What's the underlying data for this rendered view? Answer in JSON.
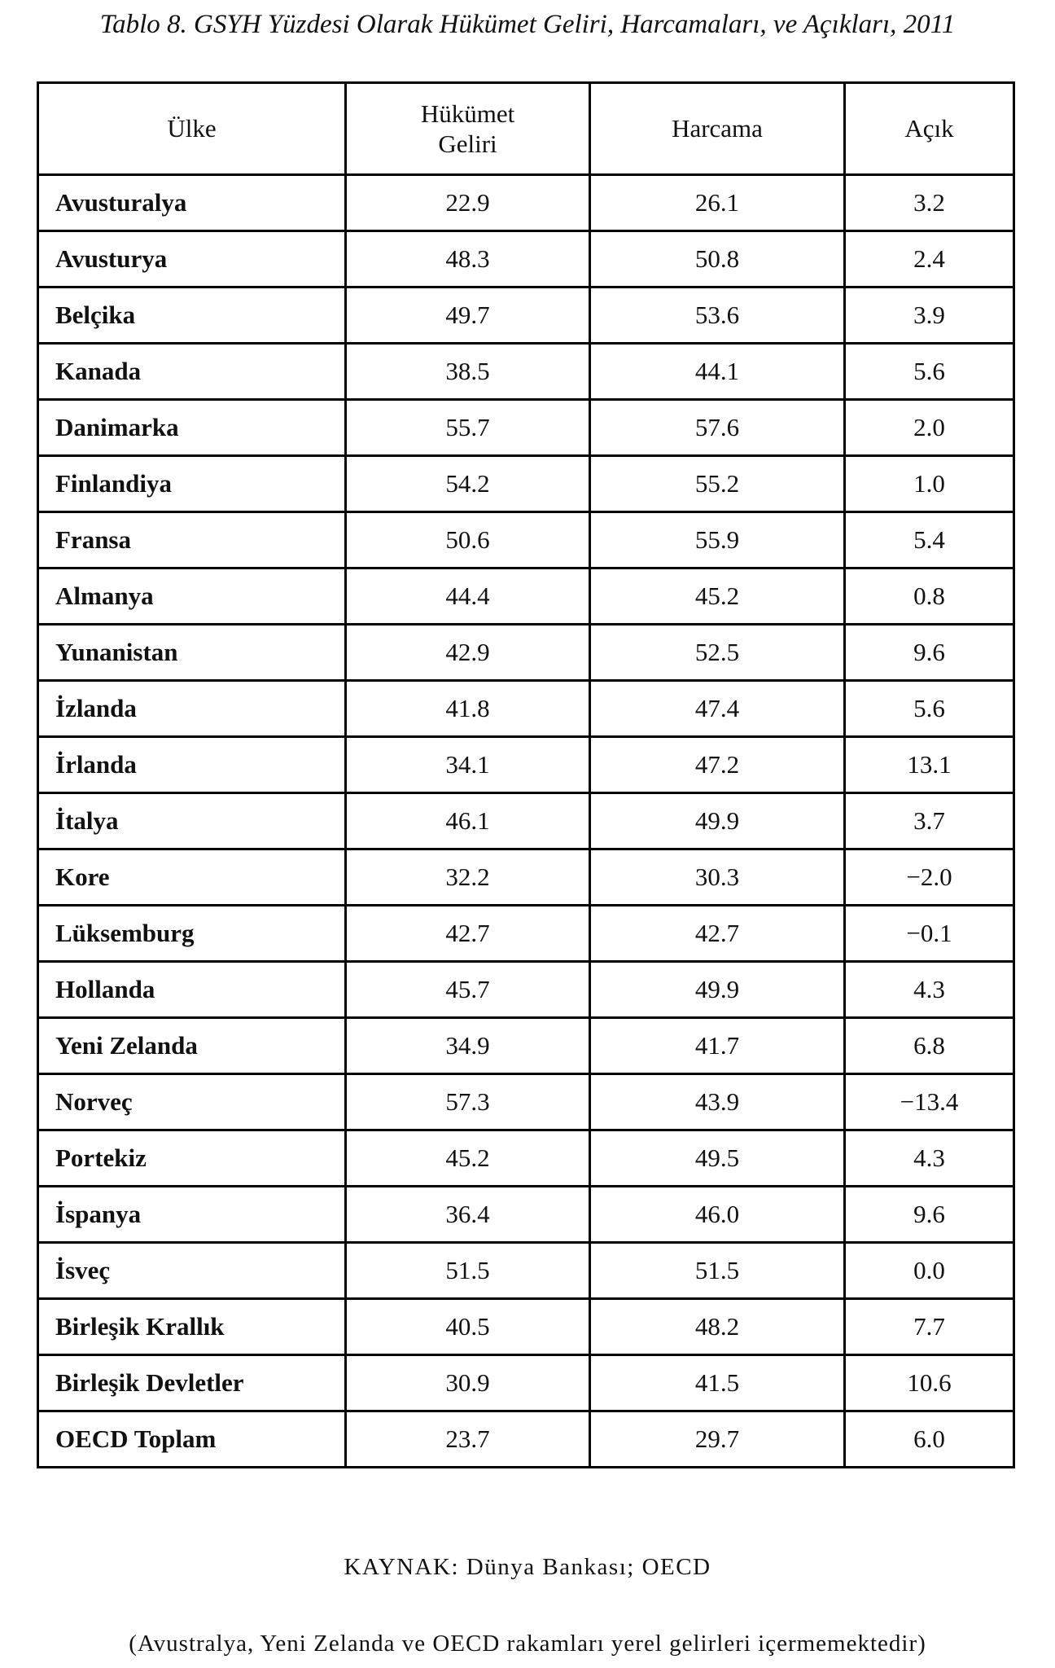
{
  "title": "Tablo 8. GSYH Yüzdesi Olarak Hükümet Geliri, Harcamaları, ve Açıkları, 2011",
  "table": {
    "header": [
      "Ülke",
      "Hükümet Geliri",
      "Harcama",
      "Açık"
    ],
    "rows": [
      [
        "Avusturalya",
        "22.9",
        "26.1",
        "3.2"
      ],
      [
        "Avusturya",
        "48.3",
        "50.8",
        "2.4"
      ],
      [
        "Belçika",
        "49.7",
        "53.6",
        "3.9"
      ],
      [
        "Kanada",
        "38.5",
        "44.1",
        "5.6"
      ],
      [
        "Danimarka",
        "55.7",
        "57.6",
        "2.0"
      ],
      [
        "Finlandiya",
        "54.2",
        "55.2",
        "1.0"
      ],
      [
        "Fransa",
        "50.6",
        "55.9",
        "5.4"
      ],
      [
        "Almanya",
        "44.4",
        "45.2",
        "0.8"
      ],
      [
        "Yunanistan",
        "42.9",
        "52.5",
        "9.6"
      ],
      [
        "İzlanda",
        "41.8",
        "47.4",
        "5.6"
      ],
      [
        "İrlanda",
        "34.1",
        "47.2",
        "13.1"
      ],
      [
        "İtalya",
        "46.1",
        "49.9",
        "3.7"
      ],
      [
        "Kore",
        "32.2",
        "30.3",
        "−2.0"
      ],
      [
        "Lüksemburg",
        "42.7",
        "42.7",
        "−0.1"
      ],
      [
        "Hollanda",
        "45.7",
        "49.9",
        "4.3"
      ],
      [
        "Yeni Zelanda",
        "34.9",
        "41.7",
        "6.8"
      ],
      [
        "Norveç",
        "57.3",
        "43.9",
        "−13.4"
      ],
      [
        "Portekiz",
        "45.2",
        "49.5",
        "4.3"
      ],
      [
        "İspanya",
        "36.4",
        "46.0",
        "9.6"
      ],
      [
        "İsveç",
        "51.5",
        "51.5",
        "0.0"
      ],
      [
        "Birleşik Krallık",
        "40.5",
        "48.2",
        "7.7"
      ],
      [
        "Birleşik Devletler",
        "30.9",
        "41.5",
        "10.6"
      ],
      [
        "OECD Toplam",
        "23.7",
        "29.7",
        "6.0"
      ]
    ]
  },
  "source": "KAYNAK: Dünya Bankası; OECD",
  "note": "(Avustralya, Yeni Zelanda ve OECD rakamları yerel gelirleri içermemektedir)"
}
